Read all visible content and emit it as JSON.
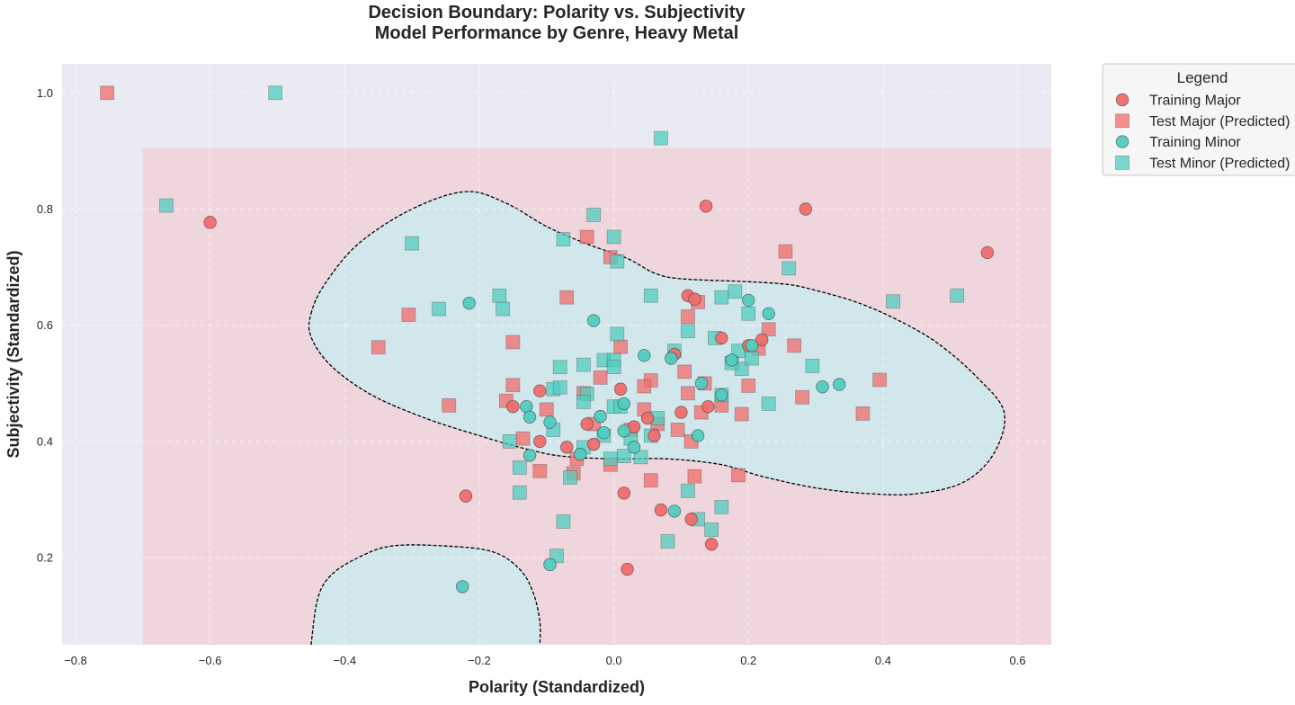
{
  "chart_data": {
    "type": "scatter",
    "title": "Decision Boundary: Polarity vs. Subjectivity",
    "subtitle": "Model Performance by Genre, Heavy Metal",
    "xlabel": "Polarity (Standardized)",
    "ylabel": "Subjectivity (Standardized)",
    "xlim": [
      -0.82,
      0.65
    ],
    "ylim": [
      0.05,
      1.05
    ],
    "x_ticks": [
      -0.8,
      -0.6,
      -0.4,
      -0.2,
      0.0,
      0.2,
      0.4,
      0.6
    ],
    "x_tick_labels": [
      "−0.8",
      "−0.6",
      "−0.4",
      "−0.2",
      "0.0",
      "0.2",
      "0.4",
      "0.6"
    ],
    "y_ticks": [
      0.2,
      0.4,
      0.6,
      0.8,
      1.0
    ],
    "y_tick_labels": [
      "0.2",
      "0.4",
      "0.6",
      "0.8",
      "1.0"
    ],
    "grid": true,
    "legend": {
      "title": "Legend",
      "placement": "outside-top-right"
    },
    "colors": {
      "major": "#f26b6b",
      "minor": "#4fcdc0",
      "major_region": "#efd5dc",
      "minor_region": "#d2e7ec",
      "axes_background": "#eaeaf2",
      "boundary": "#000000"
    },
    "regions": {
      "major_region": {
        "x": [
          -0.7,
          0.65
        ],
        "y": [
          0.05,
          0.905
        ]
      },
      "minor_regions": [
        [
          [
            -0.45,
            0.62
          ],
          [
            -0.43,
            0.67
          ],
          [
            -0.38,
            0.74
          ],
          [
            -0.3,
            0.8
          ],
          [
            -0.22,
            0.83
          ],
          [
            -0.16,
            0.81
          ],
          [
            -0.1,
            0.77
          ],
          [
            -0.04,
            0.74
          ],
          [
            0.02,
            0.715
          ],
          [
            0.06,
            0.69
          ],
          [
            0.1,
            0.68
          ],
          [
            0.2,
            0.675
          ],
          [
            0.26,
            0.67
          ],
          [
            0.3,
            0.66
          ],
          [
            0.36,
            0.64
          ],
          [
            0.42,
            0.61
          ],
          [
            0.48,
            0.57
          ],
          [
            0.54,
            0.51
          ],
          [
            0.58,
            0.45
          ],
          [
            0.565,
            0.38
          ],
          [
            0.52,
            0.33
          ],
          [
            0.45,
            0.31
          ],
          [
            0.38,
            0.31
          ],
          [
            0.3,
            0.32
          ],
          [
            0.22,
            0.34
          ],
          [
            0.16,
            0.36
          ],
          [
            0.08,
            0.37
          ],
          [
            0.0,
            0.37
          ],
          [
            -0.08,
            0.375
          ],
          [
            -0.14,
            0.39
          ],
          [
            -0.2,
            0.41
          ],
          [
            -0.28,
            0.44
          ],
          [
            -0.36,
            0.48
          ],
          [
            -0.42,
            0.53
          ],
          [
            -0.45,
            0.58
          ]
        ],
        [
          [
            -0.45,
            0.05
          ],
          [
            -0.44,
            0.13
          ],
          [
            -0.42,
            0.17
          ],
          [
            -0.38,
            0.2
          ],
          [
            -0.33,
            0.22
          ],
          [
            -0.25,
            0.22
          ],
          [
            -0.18,
            0.21
          ],
          [
            -0.14,
            0.18
          ],
          [
            -0.12,
            0.14
          ],
          [
            -0.11,
            0.09
          ],
          [
            -0.11,
            0.05
          ]
        ]
      ]
    },
    "series": [
      {
        "name": "Training Major",
        "marker": "circle",
        "color": "#f26b6b",
        "points": [
          [
            -0.6,
            0.777
          ],
          [
            0.137,
            0.805
          ],
          [
            0.285,
            0.8
          ],
          [
            0.555,
            0.725
          ],
          [
            0.11,
            0.651
          ],
          [
            0.2,
            0.565
          ],
          [
            0.22,
            0.575
          ],
          [
            0.16,
            0.578
          ],
          [
            0.12,
            0.645
          ],
          [
            -0.11,
            0.487
          ],
          [
            -0.15,
            0.46
          ],
          [
            0.01,
            0.49
          ],
          [
            0.05,
            0.44
          ],
          [
            0.1,
            0.45
          ],
          [
            0.06,
            0.41
          ],
          [
            0.03,
            0.425
          ],
          [
            -0.04,
            0.43
          ],
          [
            -0.07,
            0.39
          ],
          [
            -0.11,
            0.4
          ],
          [
            -0.22,
            0.306
          ],
          [
            0.015,
            0.311
          ],
          [
            0.07,
            0.282
          ],
          [
            0.115,
            0.266
          ],
          [
            0.145,
            0.223
          ],
          [
            0.02,
            0.18
          ],
          [
            -0.03,
            0.395
          ],
          [
            0.14,
            0.46
          ],
          [
            0.09,
            0.55
          ]
        ]
      },
      {
        "name": "Test Major (Predicted)",
        "marker": "square",
        "color": "#f26b6b",
        "points": [
          [
            -0.753,
            1.0
          ],
          [
            -0.04,
            0.752
          ],
          [
            -0.005,
            0.717
          ],
          [
            0.255,
            0.727
          ],
          [
            -0.07,
            0.648
          ],
          [
            -0.305,
            0.618
          ],
          [
            -0.35,
            0.562
          ],
          [
            -0.15,
            0.571
          ],
          [
            0.11,
            0.615
          ],
          [
            0.125,
            0.64
          ],
          [
            0.23,
            0.593
          ],
          [
            0.268,
            0.565
          ],
          [
            0.215,
            0.56
          ],
          [
            0.01,
            0.563
          ],
          [
            -0.02,
            0.51
          ],
          [
            0.055,
            0.505
          ],
          [
            0.105,
            0.52
          ],
          [
            0.135,
            0.5
          ],
          [
            0.2,
            0.496
          ],
          [
            -0.15,
            0.497
          ],
          [
            -0.16,
            0.47
          ],
          [
            -0.1,
            0.455
          ],
          [
            -0.045,
            0.483
          ],
          [
            0.045,
            0.495
          ],
          [
            0.11,
            0.483
          ],
          [
            0.045,
            0.455
          ],
          [
            0.13,
            0.45
          ],
          [
            0.16,
            0.462
          ],
          [
            0.19,
            0.447
          ],
          [
            0.28,
            0.476
          ],
          [
            0.37,
            0.448
          ],
          [
            0.395,
            0.506
          ],
          [
            -0.245,
            0.462
          ],
          [
            -0.135,
            0.405
          ],
          [
            -0.03,
            0.43
          ],
          [
            0.025,
            0.42
          ],
          [
            0.065,
            0.43
          ],
          [
            0.095,
            0.42
          ],
          [
            0.115,
            0.4
          ],
          [
            -0.055,
            0.37
          ],
          [
            -0.005,
            0.36
          ],
          [
            -0.11,
            0.349
          ],
          [
            -0.06,
            0.345
          ],
          [
            0.055,
            0.333
          ],
          [
            0.12,
            0.34
          ],
          [
            0.185,
            0.342
          ]
        ]
      },
      {
        "name": "Training Minor",
        "marker": "circle",
        "color": "#4fcdc0",
        "points": [
          [
            -0.215,
            0.638
          ],
          [
            -0.03,
            0.608
          ],
          [
            0.2,
            0.643
          ],
          [
            0.23,
            0.62
          ],
          [
            0.205,
            0.565
          ],
          [
            0.175,
            0.54
          ],
          [
            0.045,
            0.548
          ],
          [
            0.085,
            0.543
          ],
          [
            0.13,
            0.5
          ],
          [
            0.16,
            0.48
          ],
          [
            0.31,
            0.494
          ],
          [
            0.335,
            0.498
          ],
          [
            -0.13,
            0.46
          ],
          [
            -0.125,
            0.442
          ],
          [
            -0.095,
            0.433
          ],
          [
            -0.02,
            0.443
          ],
          [
            0.015,
            0.465
          ],
          [
            0.015,
            0.418
          ],
          [
            -0.015,
            0.415
          ],
          [
            0.03,
            0.39
          ],
          [
            0.125,
            0.41
          ],
          [
            -0.05,
            0.378
          ],
          [
            -0.125,
            0.376
          ],
          [
            0.09,
            0.28
          ],
          [
            -0.095,
            0.188
          ],
          [
            -0.225,
            0.15
          ]
        ]
      },
      {
        "name": "Test Minor (Predicted)",
        "marker": "square",
        "color": "#4fcdc0",
        "points": [
          [
            -0.503,
            1.0
          ],
          [
            0.07,
            0.922
          ],
          [
            -0.665,
            0.806
          ],
          [
            -0.03,
            0.79
          ],
          [
            -0.3,
            0.741
          ],
          [
            -0.075,
            0.748
          ],
          [
            0.0,
            0.752
          ],
          [
            0.005,
            0.71
          ],
          [
            0.26,
            0.698
          ],
          [
            -0.17,
            0.651
          ],
          [
            -0.165,
            0.628
          ],
          [
            -0.26,
            0.628
          ],
          [
            0.055,
            0.651
          ],
          [
            0.16,
            0.648
          ],
          [
            0.18,
            0.658
          ],
          [
            0.415,
            0.641
          ],
          [
            0.51,
            0.651
          ],
          [
            0.2,
            0.62
          ],
          [
            0.005,
            0.585
          ],
          [
            0.11,
            0.59
          ],
          [
            0.15,
            0.578
          ],
          [
            0.09,
            0.556
          ],
          [
            0.185,
            0.556
          ],
          [
            0.19,
            0.525
          ],
          [
            0.175,
            0.535
          ],
          [
            0.205,
            0.543
          ],
          [
            -0.08,
            0.528
          ],
          [
            -0.045,
            0.532
          ],
          [
            -0.015,
            0.54
          ],
          [
            0.0,
            0.54
          ],
          [
            0.0,
            0.528
          ],
          [
            -0.09,
            0.49
          ],
          [
            -0.08,
            0.493
          ],
          [
            -0.04,
            0.482
          ],
          [
            -0.045,
            0.468
          ],
          [
            0.0,
            0.46
          ],
          [
            0.01,
            0.46
          ],
          [
            0.16,
            0.48
          ],
          [
            0.23,
            0.465
          ],
          [
            0.295,
            0.53
          ],
          [
            -0.155,
            0.4
          ],
          [
            -0.09,
            0.42
          ],
          [
            -0.015,
            0.41
          ],
          [
            0.025,
            0.405
          ],
          [
            0.055,
            0.41
          ],
          [
            0.065,
            0.44
          ],
          [
            -0.045,
            0.39
          ],
          [
            -0.005,
            0.37
          ],
          [
            0.015,
            0.375
          ],
          [
            0.04,
            0.373
          ],
          [
            -0.14,
            0.355
          ],
          [
            -0.065,
            0.338
          ],
          [
            -0.14,
            0.312
          ],
          [
            0.11,
            0.315
          ],
          [
            0.16,
            0.287
          ],
          [
            -0.075,
            0.262
          ],
          [
            0.125,
            0.266
          ],
          [
            0.145,
            0.248
          ],
          [
            0.08,
            0.228
          ],
          [
            -0.085,
            0.203
          ]
        ]
      }
    ]
  }
}
